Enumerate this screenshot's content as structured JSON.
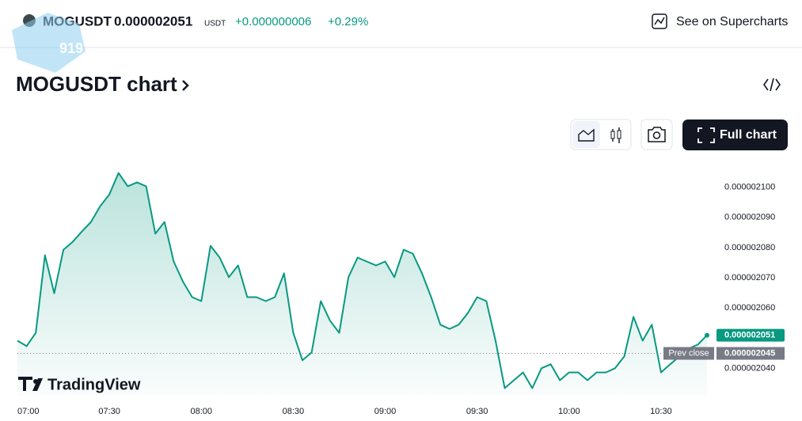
{
  "header": {
    "symbol": "MOGUSDT",
    "price": "0.000002051",
    "unit": "USDT",
    "change": "+0.000000006",
    "change_pct": "+0.29%",
    "link": "See on Supercharts"
  },
  "watermark": "919",
  "title": "MOGUSDT chart",
  "full_chart": "Full chart",
  "brand": "TradingView",
  "chart_data": {
    "type": "line",
    "color": "#089981",
    "x": [
      "07:00",
      "07:03",
      "07:06",
      "07:09",
      "07:12",
      "07:15",
      "07:18",
      "07:21",
      "07:24",
      "07:27",
      "07:30",
      "07:33",
      "07:36",
      "07:39",
      "07:42",
      "07:45",
      "07:48",
      "07:51",
      "07:54",
      "07:57",
      "08:00",
      "08:03",
      "08:06",
      "08:09",
      "08:12",
      "08:15",
      "08:18",
      "08:21",
      "08:24",
      "08:27",
      "08:30",
      "08:33",
      "08:36",
      "08:39",
      "08:42",
      "08:45",
      "08:48",
      "08:51",
      "08:54",
      "08:57",
      "09:00",
      "09:03",
      "09:06",
      "09:09",
      "09:12",
      "09:15",
      "09:18",
      "09:21",
      "09:24",
      "09:27",
      "09:30",
      "09:33",
      "09:36",
      "09:39",
      "09:42",
      "09:45",
      "09:48",
      "09:51",
      "09:54",
      "09:57",
      "10:00",
      "10:03",
      "10:06",
      "10:09",
      "10:12",
      "10:15",
      "10:18",
      "10:21",
      "10:24",
      "10:27",
      "10:30",
      "10:33",
      "10:36",
      "10:39",
      "10:42",
      "10:45"
    ],
    "values": [
      2.0492e-06,
      2.0474e-06,
      2.0518e-06,
      2.0775e-06,
      2.0649e-06,
      2.0793e-06,
      2.0819e-06,
      2.0853e-06,
      2.0885e-06,
      2.0937e-06,
      2.0976e-06,
      2.1047e-06,
      2.1003e-06,
      2.1016e-06,
      2.1003e-06,
      2.0846e-06,
      2.0885e-06,
      2.0754e-06,
      2.0688e-06,
      2.0636e-06,
      2.0623e-06,
      2.0806e-06,
      2.0767e-06,
      2.0702e-06,
      2.0741e-06,
      2.0636e-06,
      2.0636e-06,
      2.0623e-06,
      2.0636e-06,
      2.0715e-06,
      2.0518e-06,
      2.0427e-06,
      2.0453e-06,
      2.0623e-06,
      2.0558e-06,
      2.0518e-06,
      2.0702e-06,
      2.0767e-06,
      2.0754e-06,
      2.0741e-06,
      2.0754e-06,
      2.0702e-06,
      2.0793e-06,
      2.078e-06,
      2.0715e-06,
      2.0636e-06,
      2.0545e-06,
      2.0531e-06,
      2.0545e-06,
      2.0584e-06,
      2.0636e-06,
      2.0623e-06,
      2.0492e-06,
      2.0335e-06,
      2.0361e-06,
      2.0387e-06,
      2.0335e-06,
      2.0401e-06,
      2.0414e-06,
      2.0361e-06,
      2.0387e-06,
      2.0387e-06,
      2.0361e-06,
      2.0387e-06,
      2.0387e-06,
      2.0401e-06,
      2.044e-06,
      2.0571e-06,
      2.0492e-06,
      2.0545e-06,
      2.0387e-06,
      2.0414e-06,
      2.044e-06,
      2.0466e-06,
      2.0479e-06,
      2.051e-06
    ],
    "xlim": [
      "07:00",
      "10:45"
    ],
    "xticks": [
      "07:00",
      "07:30",
      "08:00",
      "08:30",
      "09:00",
      "09:30",
      "10:00",
      "10:30"
    ],
    "ylim": [
      2.031e-06,
      2.108e-06
    ],
    "yticks": [
      {
        "value": 2.1e-06,
        "label": "0.000002100"
      },
      {
        "value": 2.09e-06,
        "label": "0.000002090"
      },
      {
        "value": 2.08e-06,
        "label": "0.000002080"
      },
      {
        "value": 2.07e-06,
        "label": "0.000002070"
      },
      {
        "value": 2.06e-06,
        "label": "0.000002060"
      },
      {
        "value": 2.04e-06,
        "label": "0.000002040"
      }
    ],
    "prev_close": 2.045e-06,
    "prev_close_label": "Prev close"
  }
}
